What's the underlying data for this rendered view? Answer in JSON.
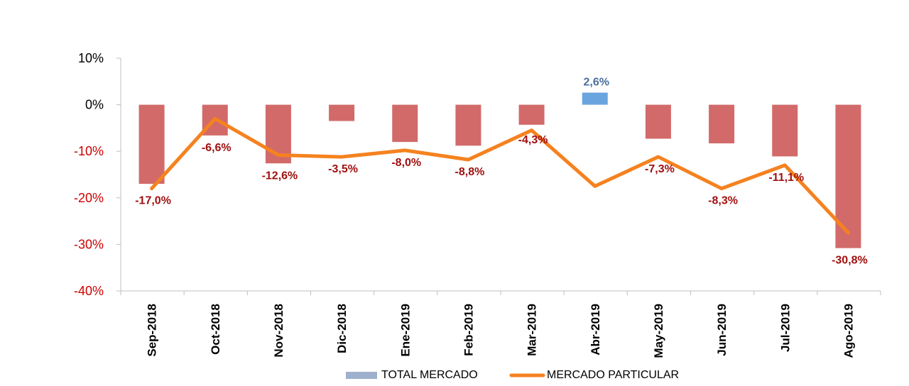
{
  "chart_data": {
    "type": "bar+line",
    "categories": [
      "Sep-2018",
      "Oct-2018",
      "Nov-2018",
      "Dic-2018",
      "Ene-2019",
      "Feb-2019",
      "Mar-2019",
      "Abr-2019",
      "May-2019",
      "Jun-2019",
      "Jul-2019",
      "Ago-2019"
    ],
    "series": [
      {
        "name": "TOTAL MERCADO",
        "type": "bar",
        "values": [
          -17.0,
          -6.6,
          -12.6,
          -3.5,
          -8.0,
          -8.8,
          -4.3,
          2.6,
          -7.3,
          -8.3,
          -11.1,
          -30.8
        ],
        "labels": [
          "-17,0%",
          "-6,6%",
          "-12,6%",
          "-3,5%",
          "-8,0%",
          "-8,8%",
          "-4,3%",
          "2,6%",
          "-7,3%",
          "-8,3%",
          "-11,1%",
          "-30,8%"
        ],
        "negative_color": "#d26a6a",
        "positive_color": "#6aa5e0"
      },
      {
        "name": "MERCADO PARTICULAR",
        "type": "line",
        "values": [
          -18.0,
          -3.0,
          -10.8,
          -11.2,
          -9.8,
          -11.8,
          -5.5,
          -17.5,
          -11.2,
          -18.0,
          -13.0,
          -27.5
        ],
        "color": "#f5821f"
      }
    ],
    "y_ticks": [
      "10%",
      "0%",
      "-10%",
      "-20%",
      "-30%",
      "-40%"
    ],
    "y_tick_values": [
      10,
      0,
      -10,
      -20,
      -30,
      -40
    ],
    "ylim": [
      -40,
      10
    ],
    "legend_position": "bottom-center",
    "legend_swatch_bar_color": "#9fb0cc",
    "positive_tick_color": "#000000",
    "negative_tick_color": "#cc0000",
    "negative_label_color": "#a01010",
    "positive_label_color": "#4a6f9c"
  }
}
